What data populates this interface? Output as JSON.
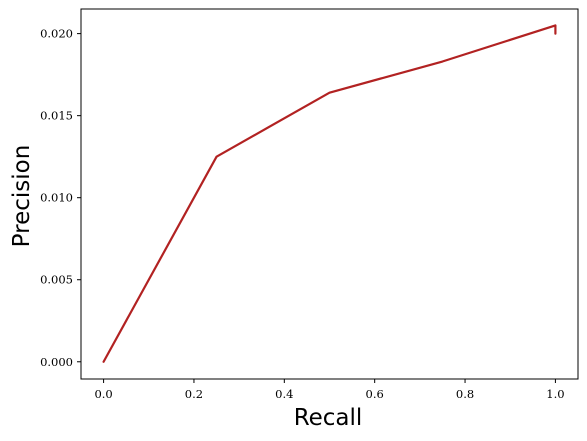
{
  "chart_data": {
    "type": "line",
    "title": "",
    "xlabel": "Recall",
    "ylabel": "Precision",
    "xlim": [
      -0.05,
      1.05
    ],
    "ylim": [
      -0.00105,
      0.0215
    ],
    "x_ticks": [
      0.0,
      0.2,
      0.4,
      0.6,
      0.8,
      1.0
    ],
    "x_tick_labels": [
      "0.0",
      "0.2",
      "0.4",
      "0.6",
      "0.8",
      "1.0"
    ],
    "y_ticks": [
      0.0,
      0.005,
      0.01,
      0.015,
      0.02
    ],
    "y_tick_labels": [
      "0.000",
      "0.005",
      "0.010",
      "0.015",
      "0.020"
    ],
    "grid": false,
    "legend": "none",
    "series": [
      {
        "color": "#b22222",
        "x": [
          0.0,
          0.25,
          0.5,
          0.75,
          1.0,
          1.0
        ],
        "y": [
          0.0,
          0.0125,
          0.0164,
          0.0183,
          0.0205,
          0.02
        ]
      }
    ]
  }
}
